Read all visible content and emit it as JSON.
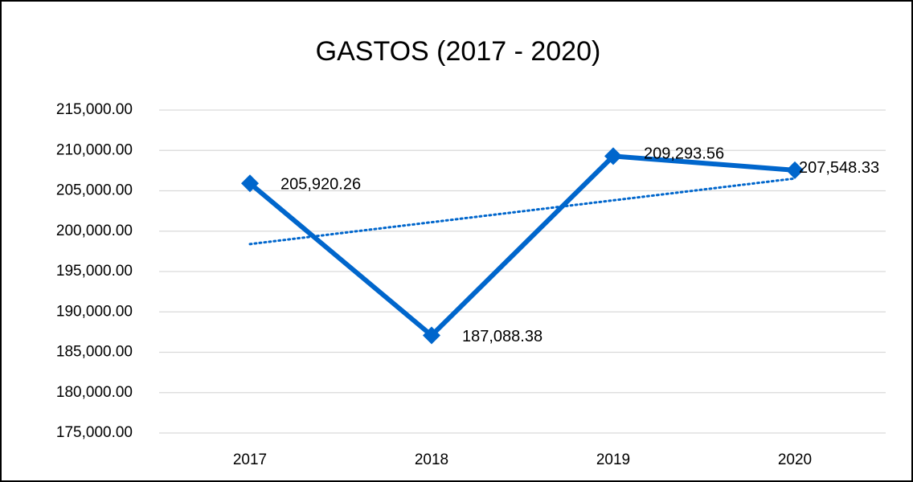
{
  "chart_data": {
    "type": "line",
    "title": "GASTOS (2017 - 2020)",
    "categories": [
      "2017",
      "2018",
      "2019",
      "2020"
    ],
    "series": [
      {
        "name": "GASTOS",
        "color": "#0066cc",
        "values": [
          205920.26,
          187088.38,
          209293.56,
          207548.33
        ],
        "value_labels": [
          "205,920.26",
          "187,088.38",
          "209,293.56",
          "207,548.33"
        ]
      }
    ],
    "ylim": [
      175000,
      215000
    ],
    "yticks": [
      {
        "value": 175000,
        "label": "175,000.00"
      },
      {
        "value": 180000,
        "label": "180,000.00"
      },
      {
        "value": 185000,
        "label": "185,000.00"
      },
      {
        "value": 190000,
        "label": "190,000.00"
      },
      {
        "value": 195000,
        "label": "195,000.00"
      },
      {
        "value": 200000,
        "label": "200,000.00"
      },
      {
        "value": 205000,
        "label": "205,000.00"
      },
      {
        "value": 210000,
        "label": "210,000.00"
      },
      {
        "value": 215000,
        "label": "215,000.00"
      }
    ],
    "grid": true,
    "trendline": "linear"
  }
}
